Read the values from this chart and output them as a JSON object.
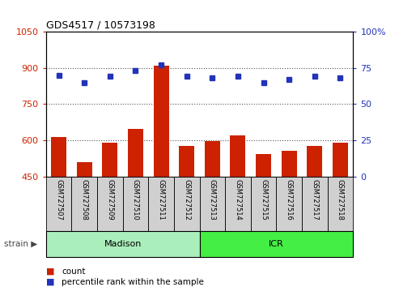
{
  "title": "GDS4517 / 10573198",
  "samples": [
    "GSM727507",
    "GSM727508",
    "GSM727509",
    "GSM727510",
    "GSM727511",
    "GSM727512",
    "GSM727513",
    "GSM727514",
    "GSM727515",
    "GSM727516",
    "GSM727517",
    "GSM727518"
  ],
  "counts": [
    615,
    510,
    590,
    648,
    910,
    578,
    597,
    620,
    543,
    558,
    578,
    590
  ],
  "percentiles": [
    70,
    65,
    69,
    73,
    77,
    69,
    68,
    69,
    65,
    67,
    69,
    68
  ],
  "ylim_left": [
    450,
    1050
  ],
  "ylim_right": [
    0,
    100
  ],
  "yticks_left": [
    450,
    600,
    750,
    900,
    1050
  ],
  "yticks_right": [
    0,
    25,
    50,
    75,
    100
  ],
  "ytick_right_labels": [
    "0",
    "25",
    "50",
    "75",
    "100%"
  ],
  "bar_color": "#cc2200",
  "dot_color": "#2233bb",
  "strain_groups": [
    {
      "label": "Madison",
      "start": 0,
      "end": 6,
      "color": "#aaeebb"
    },
    {
      "label": "ICR",
      "start": 6,
      "end": 12,
      "color": "#44ee44"
    }
  ],
  "strain_label": "strain",
  "legend_count_label": "count",
  "legend_pct_label": "percentile rank within the sample",
  "grid_color": "#555555",
  "bar_color_left_axis": "#cc2200",
  "ylabel_right_color": "#2233bb",
  "label_box_color": "#d0d0d0",
  "bar_width": 0.6
}
